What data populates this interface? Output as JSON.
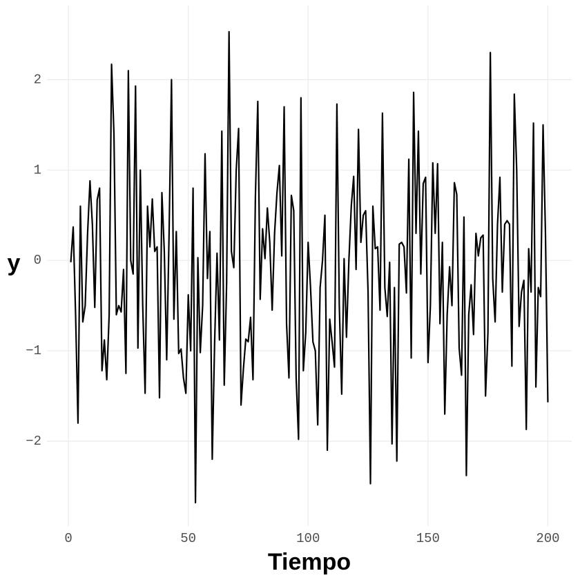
{
  "chart_data": {
    "type": "line",
    "x_label": "Tiempo",
    "y_label": "y",
    "color": "#000000",
    "grid": true,
    "xlim": [
      -8.95,
      209.95
    ],
    "ylim": [
      -2.94,
      2.79
    ],
    "xticks": [
      0,
      50,
      100,
      150,
      200
    ],
    "yticks": [
      {
        "value": -2,
        "label": "−2"
      },
      {
        "value": -1,
        "label": "−1"
      },
      0,
      1,
      2
    ],
    "x": [
      1,
      2,
      3,
      4,
      5,
      6,
      7,
      8,
      9,
      10,
      11,
      12,
      13,
      14,
      15,
      16,
      17,
      18,
      19,
      20,
      21,
      22,
      23,
      24,
      25,
      26,
      27,
      28,
      29,
      30,
      31,
      32,
      33,
      34,
      35,
      36,
      37,
      38,
      39,
      40,
      41,
      42,
      43,
      44,
      45,
      46,
      47,
      48,
      49,
      50,
      51,
      52,
      53,
      54,
      55,
      56,
      57,
      58,
      59,
      60,
      61,
      62,
      63,
      64,
      65,
      66,
      67,
      68,
      69,
      70,
      71,
      72,
      73,
      74,
      75,
      76,
      77,
      78,
      79,
      80,
      81,
      82,
      83,
      84,
      85,
      86,
      87,
      88,
      89,
      90,
      91,
      92,
      93,
      94,
      95,
      96,
      97,
      98,
      99,
      100,
      101,
      102,
      103,
      104,
      105,
      106,
      107,
      108,
      109,
      110,
      111,
      112,
      113,
      114,
      115,
      116,
      117,
      118,
      119,
      120,
      121,
      122,
      123,
      124,
      125,
      126,
      127,
      128,
      129,
      130,
      131,
      132,
      133,
      134,
      135,
      136,
      137,
      138,
      139,
      140,
      141,
      142,
      143,
      144,
      145,
      146,
      147,
      148,
      149,
      150,
      151,
      152,
      153,
      154,
      155,
      156,
      157,
      158,
      159,
      160,
      161,
      162,
      163,
      164,
      165,
      166,
      167,
      168,
      169,
      170,
      171,
      172,
      173,
      174,
      175,
      176,
      177,
      178,
      179,
      180,
      181,
      182,
      183,
      184,
      185,
      186,
      187,
      188,
      189,
      190,
      191,
      192,
      193,
      194,
      195,
      196,
      197,
      198,
      199,
      200
    ],
    "values": [
      -0.02,
      0.37,
      -0.6,
      -1.8,
      0.6,
      -0.68,
      -0.5,
      0.3,
      0.88,
      0.4,
      -0.52,
      0.67,
      0.8,
      -1.22,
      -0.88,
      -1.32,
      -0.6,
      2.17,
      1.4,
      -0.6,
      -0.5,
      -0.57,
      -0.1,
      -1.25,
      2.1,
      0.0,
      -0.15,
      1.93,
      -0.97,
      1.0,
      -0.5,
      -1.47,
      0.6,
      0.15,
      0.68,
      0.1,
      0.15,
      -1.52,
      0.75,
      0.1,
      -1.1,
      0.3,
      2.0,
      -0.65,
      0.32,
      -1.03,
      -0.98,
      -1.3,
      -1.47,
      -0.38,
      -1.0,
      0.8,
      -2.68,
      0.03,
      -1.02,
      -0.5,
      1.18,
      -0.2,
      0.32,
      -2.2,
      -0.9,
      0.08,
      -0.88,
      1.43,
      -1.38,
      -0.25,
      2.53,
      0.1,
      -0.08,
      1.0,
      1.46,
      -1.6,
      -1.2,
      -0.87,
      -0.9,
      -0.63,
      -1.32,
      0.7,
      1.76,
      -0.43,
      0.35,
      0.02,
      0.58,
      0.2,
      -0.55,
      0.3,
      0.75,
      1.05,
      0.05,
      1.7,
      -0.7,
      -1.3,
      0.72,
      0.55,
      -1.3,
      -1.98,
      1.8,
      -1.22,
      -0.8,
      0.2,
      -0.3,
      -0.9,
      -1.0,
      -1.82,
      -0.3,
      0.0,
      0.5,
      -2.1,
      -0.65,
      -0.9,
      -1.18,
      1.73,
      -0.5,
      -1.48,
      0.02,
      -0.85,
      0.0,
      0.6,
      0.93,
      -0.1,
      1.45,
      0.2,
      0.5,
      0.55,
      -0.35,
      -2.47,
      0.6,
      0.13,
      0.15,
      -0.55,
      1.63,
      -0.3,
      -0.62,
      -0.02,
      -2.03,
      -0.3,
      -2.22,
      0.18,
      0.2,
      0.15,
      -0.36,
      1.12,
      -1.08,
      1.86,
      0.3,
      1.43,
      -0.15,
      0.85,
      0.92,
      -1.13,
      -0.5,
      1.08,
      0.3,
      1.07,
      -0.7,
      0.2,
      -1.7,
      -0.6,
      -0.07,
      -0.5,
      0.86,
      0.73,
      -0.97,
      -1.27,
      0.48,
      -2.38,
      -0.6,
      -0.27,
      -0.82,
      0.3,
      0.05,
      0.25,
      0.28,
      -1.5,
      -0.8,
      2.3,
      -0.2,
      -0.68,
      0.4,
      0.92,
      -0.35,
      0.4,
      0.44,
      0.4,
      -1.17,
      1.84,
      1.0,
      -0.73,
      -0.35,
      -0.22,
      -1.87,
      0.13,
      -0.35,
      1.52,
      -1.4,
      -0.3,
      -0.4,
      1.5,
      0.3,
      -1.57
    ]
  }
}
